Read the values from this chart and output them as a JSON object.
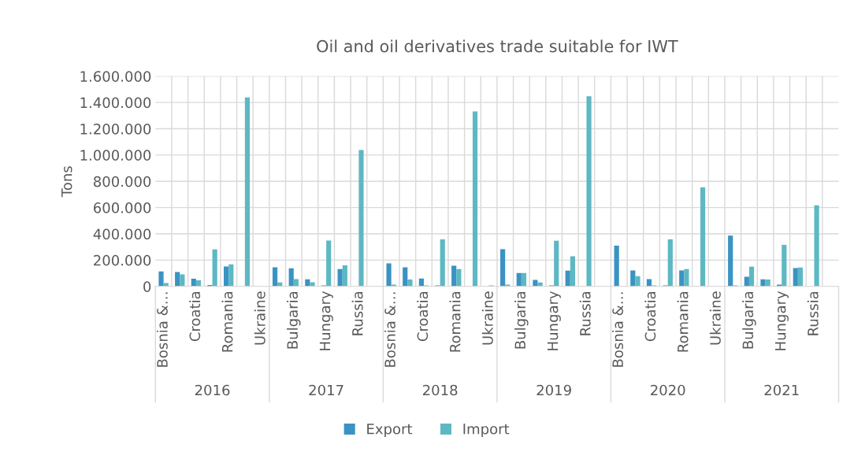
{
  "chart_data": {
    "type": "bar",
    "title": "Oil and oil derivatives trade suitable for IWT",
    "ylabel": "Tons",
    "categories": [
      "Bosnia &…",
      null,
      "Croatia",
      null,
      "Romania",
      null,
      "Ukraine",
      null,
      "Bulgaria",
      null,
      "Hungary",
      null,
      "Russia",
      null,
      "Bosnia &…",
      null,
      "Croatia",
      null,
      "Romania",
      null,
      "Ukraine",
      null,
      "Bulgaria",
      null,
      "Hungary",
      null,
      "Russia",
      null,
      "Bosnia &…",
      null,
      "Croatia",
      null,
      "Romania",
      null,
      "Ukraine",
      null,
      "Bulgaria",
      null,
      "Hungary",
      null,
      "Russia",
      null
    ],
    "annotations": [
      "2016",
      "2017",
      "2018",
      "2019",
      "2020",
      "2021"
    ],
    "series": [
      {
        "name": "Export",
        "color": "#3a93c3",
        "values": [
          114000,
          110000,
          58000,
          10000,
          152000,
          null,
          null,
          146000,
          138000,
          54000,
          8000,
          132000,
          null,
          null,
          176000,
          146000,
          60000,
          8000,
          158000,
          null,
          null,
          284000,
          102000,
          50000,
          8000,
          120000,
          null,
          null,
          310000,
          122000,
          56000,
          8000,
          122000,
          null,
          null,
          386000,
          74000,
          54000,
          14000,
          140000,
          null,
          null
        ]
      },
      {
        "name": "Import",
        "color": "#5eb8c3",
        "values": [
          26000,
          92000,
          46000,
          282000,
          168000,
          1438000,
          null,
          30000,
          56000,
          32000,
          350000,
          160000,
          1038000,
          null,
          14000,
          52000,
          8000,
          358000,
          132000,
          1332000,
          8000,
          14000,
          102000,
          30000,
          348000,
          230000,
          1448000,
          null,
          null,
          78000,
          8000,
          358000,
          132000,
          754000,
          null,
          8000,
          150000,
          52000,
          316000,
          144000,
          618000,
          null
        ]
      }
    ],
    "ylim": [
      0,
      1600000
    ],
    "yticks": [
      {
        "value": 0,
        "label": "0"
      },
      {
        "value": 200000,
        "label": "200.000"
      },
      {
        "value": 400000,
        "label": "400.000"
      },
      {
        "value": 600000,
        "label": "600.000"
      },
      {
        "value": 800000,
        "label": "800.000"
      },
      {
        "value": 1000000,
        "label": "1.000.000"
      },
      {
        "value": 1200000,
        "label": "1.200.000"
      },
      {
        "value": 1400000,
        "label": "1.400.000"
      },
      {
        "value": 1600000,
        "label": "1.600.000"
      }
    ],
    "grid": true,
    "legend": "bottom"
  }
}
